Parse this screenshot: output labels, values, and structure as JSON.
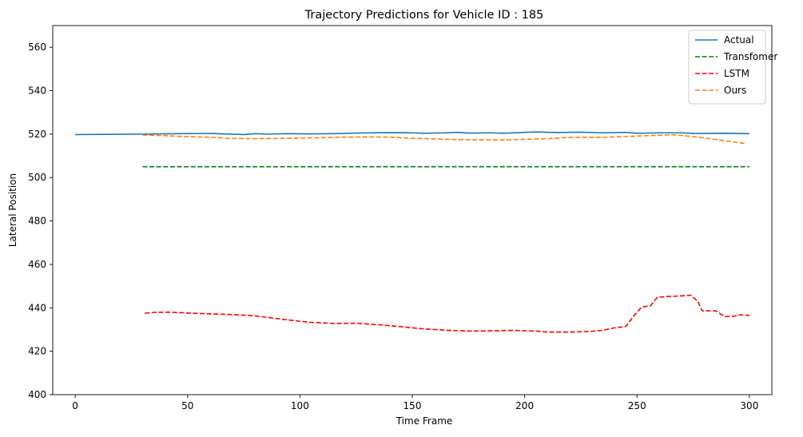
{
  "chart_data": {
    "type": "line",
    "title": "Trajectory Predictions for Vehicle ID : 185",
    "xlabel": "Time Frame",
    "ylabel": "Lateral Position",
    "xlim": [
      -10,
      310
    ],
    "ylim": [
      400,
      570
    ],
    "xticks": [
      0,
      50,
      100,
      150,
      200,
      250,
      300
    ],
    "yticks": [
      400,
      420,
      440,
      460,
      480,
      500,
      520,
      540,
      560
    ],
    "grid": false,
    "legend_position": "top-right",
    "series": [
      {
        "name": "Actual",
        "color": "#1f77b4",
        "style": "solid",
        "points": [
          [
            0,
            519.8
          ],
          [
            15,
            519.9
          ],
          [
            30,
            520.0
          ],
          [
            45,
            520.2
          ],
          [
            60,
            520.3
          ],
          [
            75,
            519.8
          ],
          [
            80,
            520.2
          ],
          [
            85,
            520.0
          ],
          [
            95,
            520.2
          ],
          [
            105,
            520.1
          ],
          [
            115,
            520.2
          ],
          [
            125,
            520.5
          ],
          [
            140,
            520.7
          ],
          [
            150,
            520.6
          ],
          [
            155,
            520.4
          ],
          [
            165,
            520.6
          ],
          [
            170,
            520.8
          ],
          [
            175,
            520.5
          ],
          [
            185,
            520.6
          ],
          [
            190,
            520.4
          ],
          [
            200,
            520.8
          ],
          [
            205,
            521.0
          ],
          [
            215,
            520.7
          ],
          [
            225,
            520.9
          ],
          [
            235,
            520.6
          ],
          [
            245,
            520.8
          ],
          [
            250,
            520.4
          ],
          [
            260,
            520.6
          ],
          [
            270,
            520.6
          ],
          [
            275,
            520.3
          ],
          [
            290,
            520.4
          ],
          [
            300,
            520.2
          ]
        ]
      },
      {
        "name": "Transfomer",
        "color": "#008000",
        "style": "dashed",
        "points": [
          [
            30,
            505
          ],
          [
            300,
            505
          ]
        ]
      },
      {
        "name": "LSTM",
        "color": "#ff0000",
        "style": "dashed",
        "points": [
          [
            31,
            437.5
          ],
          [
            35,
            437.9
          ],
          [
            42,
            438.0
          ],
          [
            50,
            437.6
          ],
          [
            60,
            437.2
          ],
          [
            70,
            436.9
          ],
          [
            80,
            436.3
          ],
          [
            90,
            435.0
          ],
          [
            100,
            433.8
          ],
          [
            105,
            433.3
          ],
          [
            115,
            432.8
          ],
          [
            125,
            432.9
          ],
          [
            135,
            432.2
          ],
          [
            145,
            431.3
          ],
          [
            155,
            430.3
          ],
          [
            165,
            429.7
          ],
          [
            175,
            429.3
          ],
          [
            185,
            429.4
          ],
          [
            195,
            429.6
          ],
          [
            205,
            429.3
          ],
          [
            210,
            428.8
          ],
          [
            220,
            428.8
          ],
          [
            230,
            429.2
          ],
          [
            235,
            429.7
          ],
          [
            240,
            430.8
          ],
          [
            245,
            431.4
          ],
          [
            249,
            436.8
          ],
          [
            252,
            440.3
          ],
          [
            256,
            441.0
          ],
          [
            259,
            444.8
          ],
          [
            263,
            445.2
          ],
          [
            268,
            445.4
          ],
          [
            274,
            445.8
          ],
          [
            277,
            443.0
          ],
          [
            279,
            438.6
          ],
          [
            285,
            438.6
          ],
          [
            289,
            436.0
          ],
          [
            293,
            436.1
          ],
          [
            296,
            436.8
          ],
          [
            300,
            436.5
          ]
        ]
      },
      {
        "name": "Ours",
        "color": "#ff7f0e",
        "style": "dashed",
        "points": [
          [
            30,
            519.6
          ],
          [
            40,
            519.3
          ],
          [
            50,
            518.8
          ],
          [
            60,
            518.6
          ],
          [
            70,
            518.0
          ],
          [
            80,
            517.9
          ],
          [
            90,
            518.0
          ],
          [
            100,
            518.2
          ],
          [
            110,
            518.4
          ],
          [
            120,
            518.6
          ],
          [
            130,
            518.7
          ],
          [
            140,
            518.6
          ],
          [
            150,
            518.1
          ],
          [
            160,
            517.8
          ],
          [
            165,
            517.6
          ],
          [
            175,
            517.4
          ],
          [
            190,
            517.3
          ],
          [
            200,
            517.6
          ],
          [
            210,
            517.9
          ],
          [
            220,
            518.5
          ],
          [
            235,
            518.5
          ],
          [
            250,
            519.1
          ],
          [
            260,
            519.5
          ],
          [
            265,
            519.7
          ],
          [
            270,
            519.4
          ],
          [
            280,
            518.2
          ],
          [
            290,
            516.8
          ],
          [
            298,
            515.7
          ]
        ]
      }
    ]
  }
}
